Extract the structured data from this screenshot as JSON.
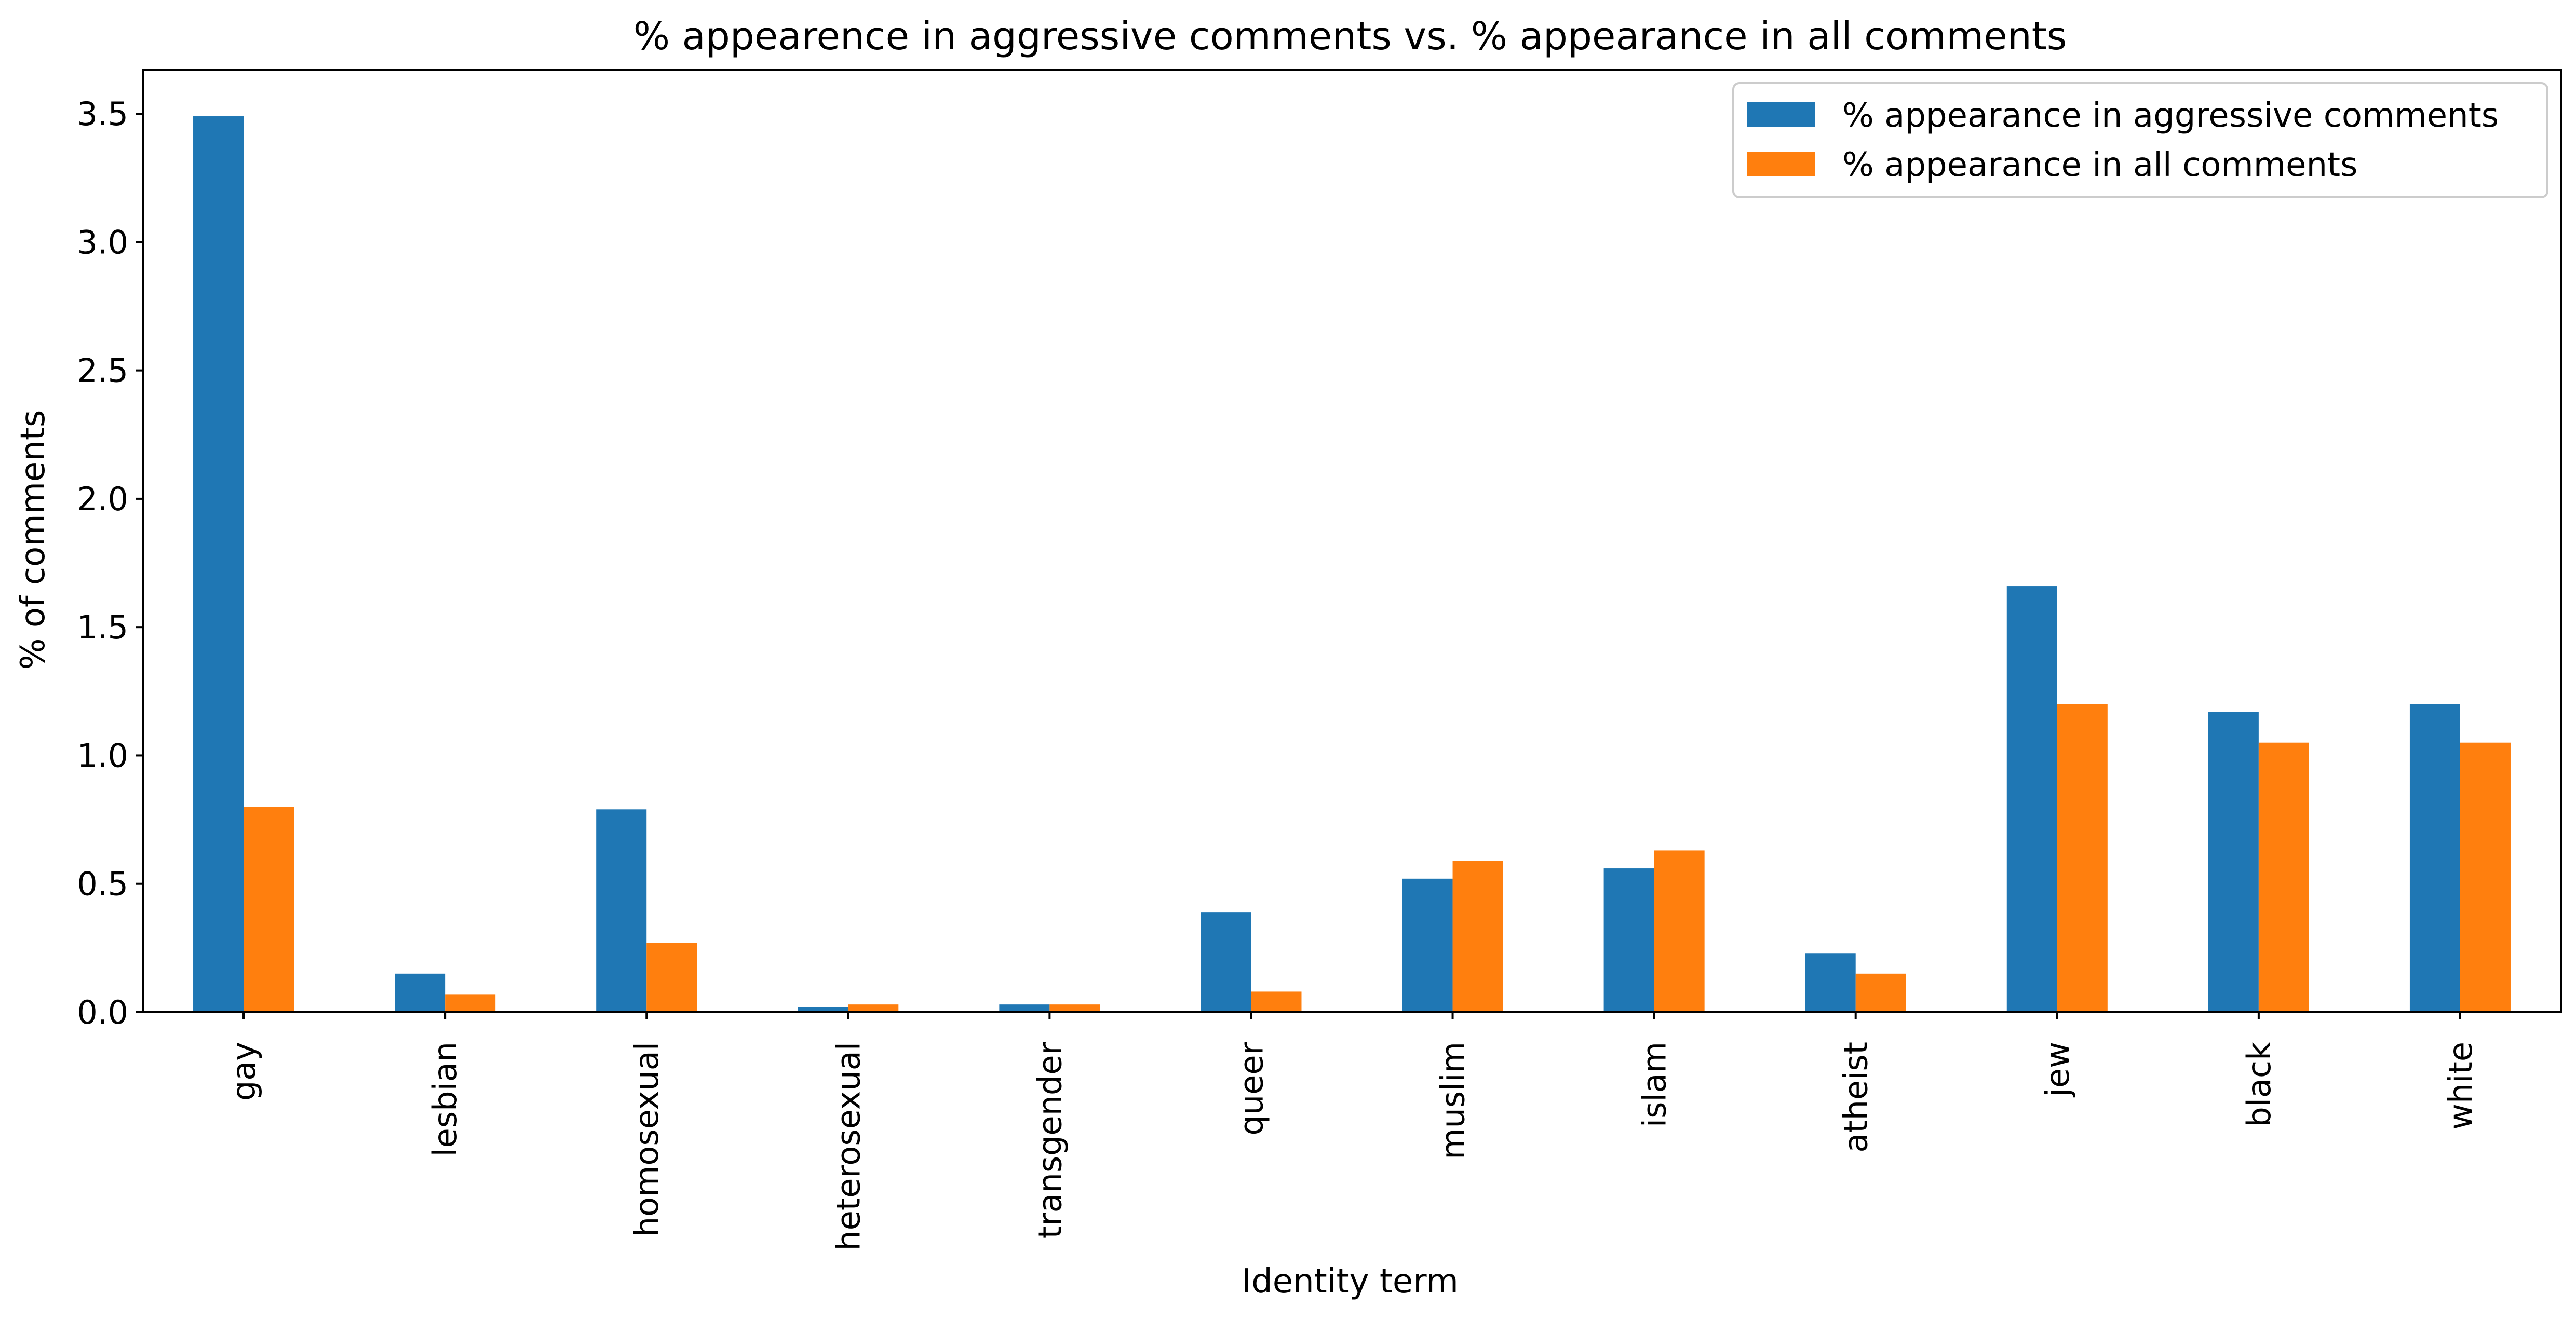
{
  "chart_data": {
    "type": "bar",
    "title": "% appearence in aggressive comments vs. % appearance in all comments",
    "xlabel": "Identity term",
    "ylabel": "% of comments",
    "categories": [
      "gay",
      "lesbian",
      "homosexual",
      "heterosexual",
      "transgender",
      "queer",
      "muslim",
      "islam",
      "atheist",
      "jew",
      "black",
      "white"
    ],
    "series": [
      {
        "name": "% appearance in aggressive comments",
        "color": "#1f77b4",
        "values": [
          3.49,
          0.15,
          0.79,
          0.02,
          0.03,
          0.39,
          0.52,
          0.56,
          0.23,
          1.66,
          1.17,
          1.2
        ]
      },
      {
        "name": "% appearance in all comments",
        "color": "#ff7f0e",
        "values": [
          0.8,
          0.07,
          0.27,
          0.03,
          0.03,
          0.08,
          0.59,
          0.63,
          0.15,
          1.2,
          1.05,
          1.05
        ]
      }
    ],
    "ylim": [
      0,
      3.67
    ],
    "yticks": [
      0.0,
      0.5,
      1.0,
      1.5,
      2.0,
      2.5,
      3.0,
      3.5
    ],
    "ytick_labels": [
      "0.0",
      "0.5",
      "1.0",
      "1.5",
      "2.0",
      "2.5",
      "3.0",
      "3.5"
    ],
    "grid": false,
    "legend_position": "upper-right"
  }
}
